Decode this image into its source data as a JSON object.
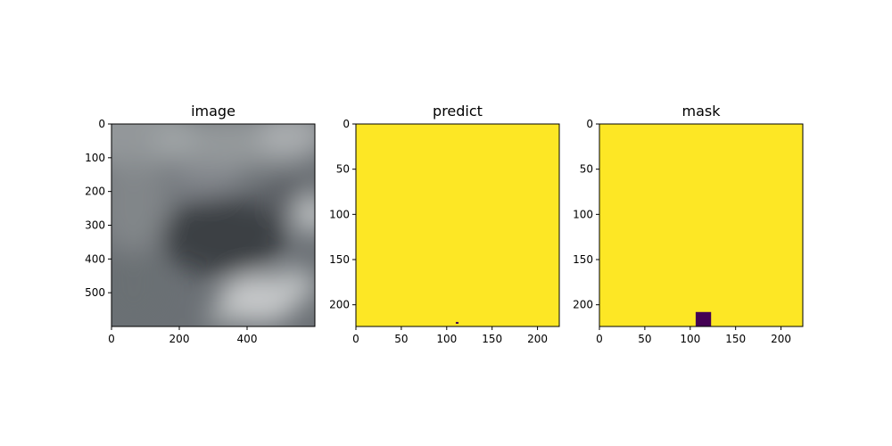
{
  "chart_data": [
    {
      "type": "image",
      "title": "image",
      "content": "cloudy sky photo",
      "xlim": [
        0,
        600
      ],
      "ylim": [
        600,
        0
      ],
      "xticks": [
        0,
        200,
        400
      ],
      "yticks": [
        0,
        100,
        200,
        300,
        400,
        500
      ],
      "colors": {
        "dark": "#3f4348",
        "light": "#c4c7c8",
        "mid": "#6b7075"
      }
    },
    {
      "type": "heatmap",
      "title": "predict",
      "xlim": [
        0,
        224
      ],
      "ylim": [
        224,
        0
      ],
      "xticks": [
        0,
        50,
        100,
        150,
        200
      ],
      "yticks": [
        0,
        50,
        100,
        150,
        200
      ],
      "background_value": 1,
      "colors": {
        "high": "#fde725",
        "low": "#440154"
      },
      "low_regions": [
        {
          "x": [
            110,
            113
          ],
          "y": [
            219,
            221
          ]
        }
      ]
    },
    {
      "type": "heatmap",
      "title": "mask",
      "xlim": [
        0,
        224
      ],
      "ylim": [
        224,
        0
      ],
      "xticks": [
        0,
        50,
        100,
        150,
        200
      ],
      "yticks": [
        0,
        50,
        100,
        150,
        200
      ],
      "background_value": 1,
      "colors": {
        "high": "#fde725",
        "low": "#440154"
      },
      "low_regions": [
        {
          "x": [
            106,
            123
          ],
          "y": [
            208,
            224
          ]
        }
      ]
    }
  ]
}
